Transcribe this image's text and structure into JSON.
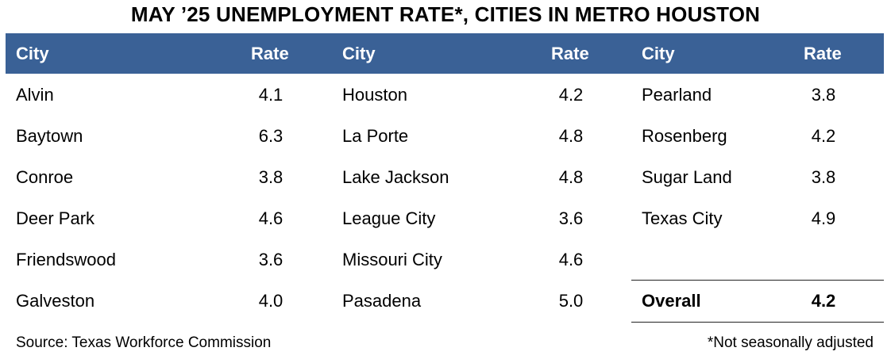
{
  "title": "MAY ’25 UNEMPLOYMENT RATE*, CITIES IN METRO HOUSTON",
  "header": {
    "city_label": "City",
    "rate_label": "Rate"
  },
  "chart_data": {
    "type": "table",
    "title": "MAY ’25 UNEMPLOYMENT RATE*, CITIES IN METRO HOUSTON",
    "columns": [
      "City",
      "Rate"
    ],
    "groups": [
      {
        "rows": [
          {
            "city": "Alvin",
            "rate": "4.1"
          },
          {
            "city": "Baytown",
            "rate": "6.3"
          },
          {
            "city": "Conroe",
            "rate": "3.8"
          },
          {
            "city": "Deer Park",
            "rate": "4.6"
          },
          {
            "city": "Friendswood",
            "rate": "3.6"
          },
          {
            "city": "Galveston",
            "rate": "4.0"
          }
        ]
      },
      {
        "rows": [
          {
            "city": "Houston",
            "rate": "4.2"
          },
          {
            "city": "La Porte",
            "rate": "4.8"
          },
          {
            "city": "Lake Jackson",
            "rate": "4.8"
          },
          {
            "city": "League City",
            "rate": "3.6"
          },
          {
            "city": "Missouri City",
            "rate": "4.6"
          },
          {
            "city": "Pasadena",
            "rate": "5.0"
          }
        ]
      },
      {
        "rows": [
          {
            "city": "Pearland",
            "rate": "3.8"
          },
          {
            "city": "Rosenberg",
            "rate": "4.2"
          },
          {
            "city": "Sugar Land",
            "rate": "3.8"
          },
          {
            "city": "Texas City",
            "rate": "4.9"
          }
        ]
      }
    ],
    "total": {
      "label": "Overall",
      "rate": "4.2"
    }
  },
  "footer": {
    "source": "Source: Texas Workforce Commission",
    "note": "*Not seasonally adjusted"
  },
  "colors": {
    "header_bg": "#3a6196",
    "header_text": "#ffffff"
  }
}
